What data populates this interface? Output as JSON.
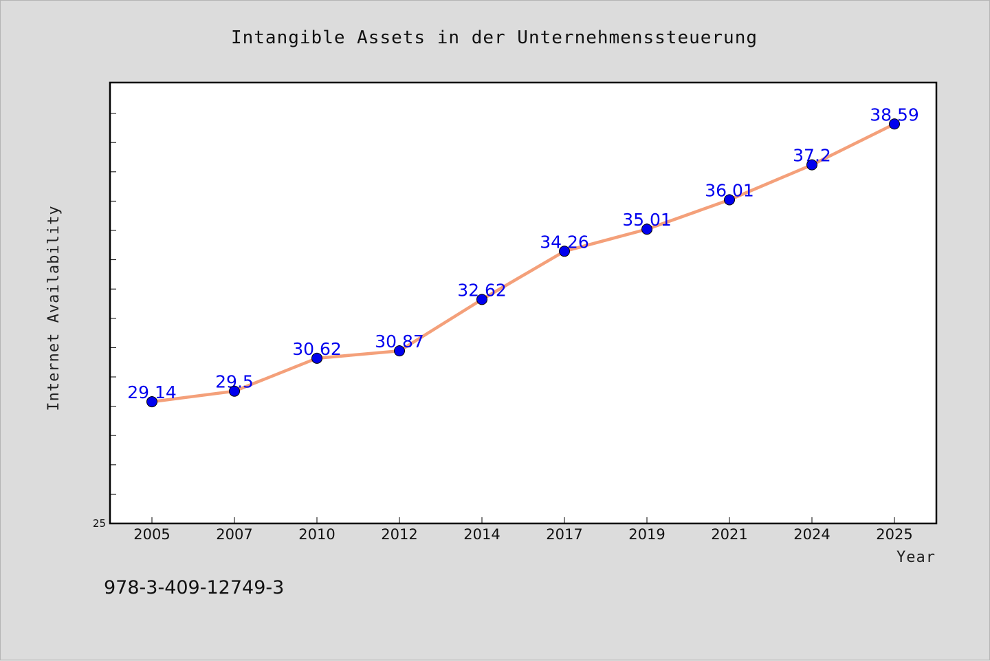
{
  "chart_data": {
    "type": "line",
    "title": "Intangible Assets in der Unternehmenssteuerung",
    "xlabel": "Year",
    "ylabel": "Internet Availability",
    "categories": [
      "2005",
      "2007",
      "2010",
      "2012",
      "2014",
      "2017",
      "2019",
      "2021",
      "2024",
      "2025"
    ],
    "values": [
      29.14,
      29.5,
      30.62,
      30.87,
      32.62,
      34.26,
      35.01,
      36.01,
      37.2,
      38.59
    ],
    "ylim": [
      25,
      40
    ],
    "yticks_labeled": [
      "25"
    ],
    "grid": false,
    "colors": {
      "line": "#f4a07a",
      "marker": "#0000ee",
      "label": "#0000ee",
      "plot_bg": "#ffffff",
      "page_bg": "#dcdcdc"
    }
  },
  "note": "978-3-409-12749-3"
}
